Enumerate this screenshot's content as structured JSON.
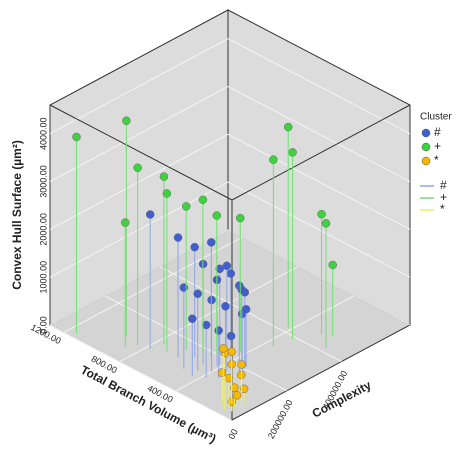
{
  "chart_data": {
    "type": "scatter3d",
    "xlabel": "Total Branch Volume (µm³)",
    "ylabel": "Complexity",
    "zlabel": "Convex Hull Surface (µm²)",
    "xlim": [
      0,
      1300
    ],
    "ylim": [
      0,
      650000
    ],
    "zlim": [
      0,
      4600
    ],
    "xticks": [
      {
        "value": 400,
        "label": "400.00"
      },
      {
        "value": 800,
        "label": "800.00"
      },
      {
        "value": 1200,
        "label": "1200.00"
      }
    ],
    "yticks": [
      {
        "value": 0,
        "label": "00"
      },
      {
        "value": 200000,
        "label": "200000.00"
      },
      {
        "value": 400000,
        "label": "400000.00"
      }
    ],
    "zticks": [
      {
        "value": 0,
        "label": "0.00"
      },
      {
        "value": 1000,
        "label": "1000.00"
      },
      {
        "value": 2000,
        "label": "2000.00"
      },
      {
        "value": 3000,
        "label": "3000.00"
      },
      {
        "value": 4000,
        "label": "4000.00"
      }
    ],
    "legend_title": "Cluster",
    "legend_position": "right",
    "series": [
      {
        "name": "#",
        "color": "#3f5fd0",
        "line_color": "#8fa6e6",
        "x": [
          780,
          620,
          560,
          480,
          420,
          380,
          350,
          300,
          520,
          460,
          400,
          340,
          300,
          260,
          440,
          380,
          330,
          280,
          360,
          310,
          500,
          420
        ],
        "y": [
          100000,
          120000,
          150000,
          140000,
          170000,
          190000,
          160000,
          180000,
          90000,
          110000,
          130000,
          150000,
          200000,
          170000,
          80000,
          100000,
          120000,
          140000,
          220000,
          210000,
          180000,
          160000
        ],
        "z": [
          2800,
          2500,
          2300,
          2100,
          2000,
          1900,
          2200,
          1800,
          1700,
          1600,
          1500,
          1400,
          1600,
          1300,
          1200,
          1100,
          1000,
          900,
          1500,
          1200,
          2400,
          1800
        ]
      },
      {
        "name": "+",
        "color": "#3fd23f",
        "line_color": "#6fe06f",
        "x": [
          1150,
          950,
          850,
          760,
          700,
          640,
          560,
          500,
          430,
          350,
          330,
          420,
          260,
          200,
          150,
          880
        ],
        "y": [
          20000,
          100000,
          90000,
          140000,
          120000,
          160000,
          180000,
          200000,
          250000,
          330000,
          390000,
          420000,
          460000,
          470000,
          420000,
          60000
        ],
        "z": [
          4100,
          4500,
          3700,
          3500,
          3300,
          3000,
          3200,
          2900,
          2800,
          3900,
          3900,
          4200,
          2500,
          1500,
          2600,
          2600
        ]
      },
      {
        "name": "*",
        "color": "#f7b800",
        "line_color": "#eef05a",
        "x": [
          60,
          80,
          100,
          120,
          140,
          90,
          70,
          110,
          130,
          50,
          160,
          100
        ],
        "y": [
          30000,
          50000,
          40000,
          60000,
          70000,
          20000,
          80000,
          90000,
          30000,
          60000,
          50000,
          70000
        ],
        "z": [
          200,
          400,
          600,
          800,
          1000,
          1200,
          300,
          500,
          700,
          900,
          1100,
          150
        ]
      }
    ],
    "annotations": [
      "+",
      "#",
      "*"
    ]
  }
}
